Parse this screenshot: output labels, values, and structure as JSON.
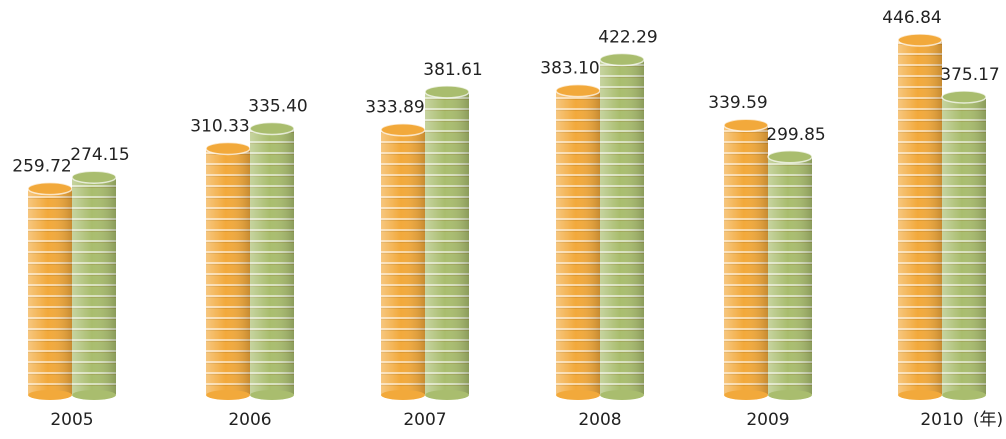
{
  "chart_data": {
    "type": "coin-bar",
    "categories": [
      "2005",
      "2006",
      "2007",
      "2008",
      "2009",
      "2010"
    ],
    "xlabel": "(年)",
    "series": [
      {
        "color": "#f2a93b",
        "values": [
          259.72,
          310.33,
          333.89,
          383.1,
          339.59,
          446.84
        ],
        "value_labels": [
          "259.72",
          "310.33",
          "333.89",
          "383.10",
          "339.59",
          "446.84"
        ]
      },
      {
        "color": "#a9bd6e",
        "values": [
          274.15,
          335.4,
          381.61,
          422.29,
          299.85,
          375.17
        ],
        "value_labels": [
          "274.15",
          "335.40",
          "381.61",
          "422.29",
          "299.85",
          "375.17"
        ]
      }
    ]
  }
}
